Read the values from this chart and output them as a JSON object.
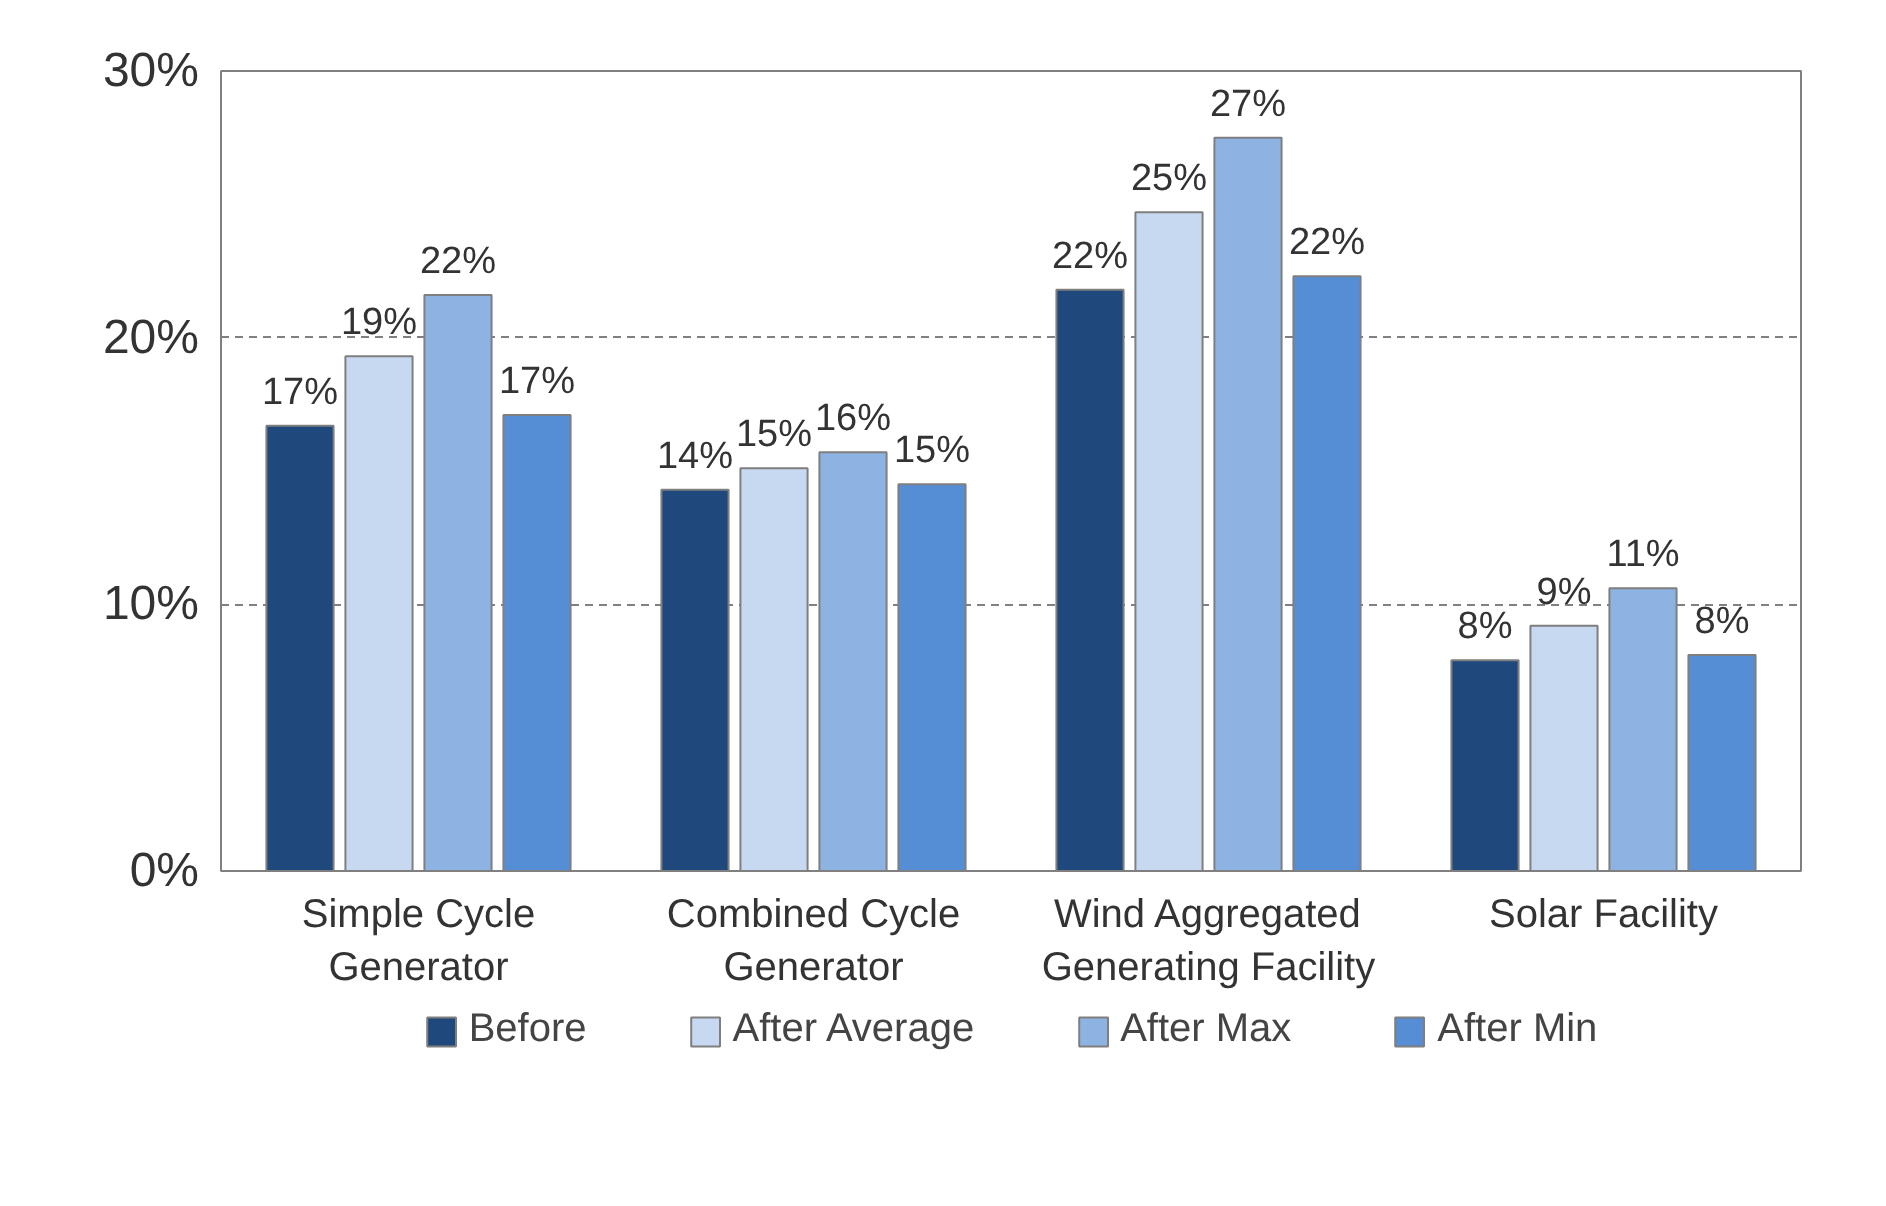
{
  "chart_data": {
    "type": "bar",
    "categories": [
      "Simple Cycle Generator",
      "Combined Cycle Generator",
      "Wind Aggregated Generating Facility",
      "Solar Facility"
    ],
    "series": [
      {
        "name": "Before",
        "color": "#1f497d",
        "values": [
          16.7,
          14.3,
          21.8,
          7.9
        ],
        "value_labels": [
          "17%",
          "14%",
          "22%",
          "8%"
        ]
      },
      {
        "name": "After Average",
        "color": "#c6d9f1",
        "values": [
          19.3,
          15.1,
          24.7,
          9.2
        ],
        "value_labels": [
          "19%",
          "15%",
          "25%",
          "9%"
        ]
      },
      {
        "name": "After Max",
        "color": "#8db3e2",
        "values": [
          21.6,
          15.7,
          27.5,
          10.6
        ],
        "value_labels": [
          "22%",
          "16%",
          "27%",
          "11%"
        ]
      },
      {
        "name": "After Min",
        "color": "#558ed5",
        "values": [
          17.1,
          14.5,
          22.3,
          8.1
        ],
        "value_labels": [
          "17%",
          "15%",
          "22%",
          "8%"
        ]
      }
    ],
    "ylim": [
      0,
      30
    ],
    "yticks": [
      {
        "value": 0,
        "label": "0%"
      },
      {
        "value": 10,
        "label": "10%"
      },
      {
        "value": 20,
        "label": "20%"
      },
      {
        "value": 30,
        "label": "30%"
      }
    ],
    "grid": "y",
    "line_style": "dashed",
    "legend": "bottom"
  }
}
